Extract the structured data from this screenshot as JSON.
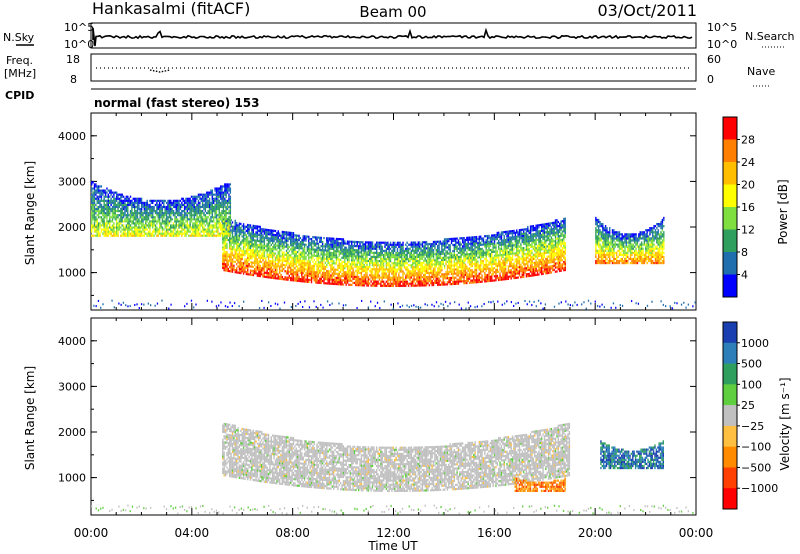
{
  "header": {
    "station": "Hankasalmi (fitACF)",
    "beam": "Beam 00",
    "date": "03/Oct/2011"
  },
  "nsky_panel": {
    "left_label": "N.Sky",
    "right_label": "N.Search",
    "left_ticks": [
      "10^5",
      "10^0"
    ],
    "right_ticks": [
      "10^5",
      "10^0"
    ]
  },
  "freq_panel": {
    "label_line1": "Freq.",
    "label_line2": "[MHz]",
    "left_ticks": [
      "18",
      "8"
    ],
    "right_ticks": [
      "60",
      "0"
    ],
    "right_label": "Nave"
  },
  "cpid_panel": {
    "label": "CPID",
    "text": "normal (fast stereo) 153"
  },
  "chart_data": [
    {
      "type": "heatmap",
      "quantity": "Power",
      "ylabel": "Slant Range [km]",
      "xlabel": "Time UT",
      "ylim": [
        180,
        4500
      ],
      "yticks": [
        "4000",
        "3000",
        "2000",
        "1000"
      ],
      "xticks": [
        "00:00",
        "04:00",
        "08:00",
        "12:00",
        "16:00",
        "20:00",
        "00:00"
      ],
      "colorbar": {
        "label": "Power [dB]",
        "ticks": [
          "28",
          "24",
          "20",
          "16",
          "12",
          "8",
          "4"
        ],
        "colors": [
          "#ff0000",
          "#ff7f00",
          "#ffbf00",
          "#ffff00",
          "#7fdf3f",
          "#2f9f5f",
          "#1f6faf",
          "#0000ff"
        ]
      },
      "features": [
        {
          "name": "main F-region band",
          "hour_start": 5.2,
          "hour_end": 18.8,
          "range_km_min": 700,
          "range_km_max": 2200,
          "peak_db": 28
        },
        {
          "name": "early band",
          "hour_start": 0.0,
          "hour_end": 5.5,
          "range_km_min": 1800,
          "range_km_max": 3000,
          "peak_db": 16
        },
        {
          "name": "evening patch",
          "hour_start": 20.0,
          "hour_end": 22.7,
          "range_km_min": 1200,
          "range_km_max": 2200,
          "peak_db": 24
        }
      ]
    },
    {
      "type": "heatmap",
      "quantity": "Velocity",
      "ylabel": "Slant Range [km]",
      "xlabel": "Time UT",
      "ylim": [
        180,
        4500
      ],
      "yticks": [
        "4000",
        "3000",
        "2000",
        "1000"
      ],
      "xticks": [
        "00:00",
        "04:00",
        "08:00",
        "12:00",
        "16:00",
        "20:00",
        "00:00"
      ],
      "colorbar": {
        "label": "Velocity [m s⁻¹]",
        "ticks": [
          "1000",
          "500",
          "100",
          "25",
          "−25",
          "−100",
          "−500",
          "−1000"
        ],
        "colors": [
          "#1a3fb0",
          "#2c7fb8",
          "#2f9f5f",
          "#5fcf3f",
          "#c0c0c0",
          "#ffbf40",
          "#ff8c00",
          "#ff4000",
          "#ff0000"
        ]
      },
      "features": [
        {
          "name": "ground scatter band",
          "hour_start": 5.2,
          "hour_end": 19.0,
          "range_km_min": 700,
          "range_km_max": 2200,
          "velocity_ms": 0
        },
        {
          "name": "evening flow",
          "hour_start": 20.2,
          "hour_end": 22.7,
          "range_km_min": 1200,
          "range_km_max": 1800,
          "velocity_ms": 500
        },
        {
          "name": "receding patch",
          "hour_start": 16.8,
          "hour_end": 18.8,
          "range_km_min": 700,
          "range_km_max": 1000,
          "velocity_ms": -300
        }
      ]
    }
  ]
}
